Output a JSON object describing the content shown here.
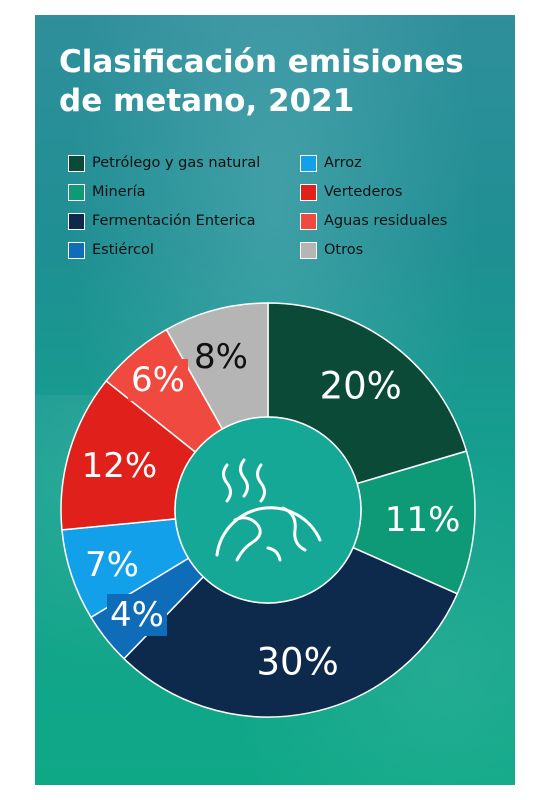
{
  "chart_data": {
    "type": "pie",
    "variant": "donut",
    "title": "Clasificación emisiones de metano, 2021",
    "legend_position": "top",
    "slices": [
      {
        "label": "Petrólego y gas natural",
        "value": 20,
        "display": "20%",
        "color": "#0b4a36",
        "text_color": "#ffffff"
      },
      {
        "label": "Minería",
        "value": 11,
        "display": "11%",
        "color": "#0e9a77",
        "text_color": "#ffffff"
      },
      {
        "label": "Fermentación Enterica",
        "value": 30,
        "display": "30%",
        "color": "#0d2a4c",
        "text_color": "#ffffff"
      },
      {
        "label": "Estiércol",
        "value": 4,
        "display": "4%",
        "color": "#0f6cb8",
        "text_color": "#ffffff"
      },
      {
        "label": "Arroz",
        "value": 7,
        "display": "7%",
        "color": "#12a0ea",
        "text_color": "#ffffff"
      },
      {
        "label": "Vertederos",
        "value": 12,
        "display": "12%",
        "color": "#e0201a",
        "text_color": "#ffffff"
      },
      {
        "label": "Aguas residuales",
        "value": 6,
        "display": "6%",
        "color": "#f0493f",
        "text_color": "#ffffff"
      },
      {
        "label": "Otros",
        "value": 8,
        "display": "8%",
        "color": "#b5b5b5",
        "text_color": "#111111"
      }
    ],
    "legend_order": [
      "Petrólego y gas natural",
      "Arroz",
      "Minería",
      "Vertederos",
      "Fermentación Enterica",
      "Aguas residuales",
      "Estiércol",
      "Otros"
    ],
    "center_icon": "methane-earth-icon"
  }
}
